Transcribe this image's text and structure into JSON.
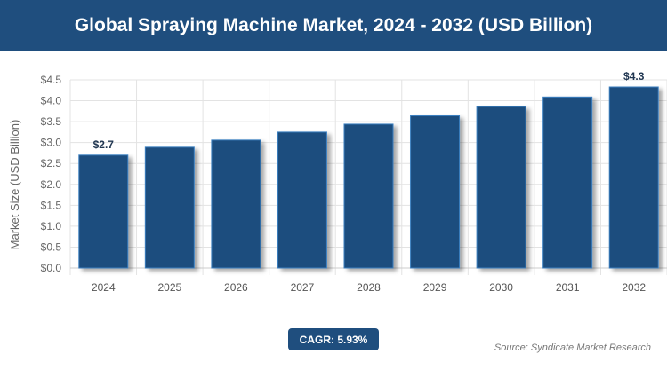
{
  "title": "Global Spraying Machine Market, 2024 - 2032 (USD Billion)",
  "cagr": "CAGR: 5.93%",
  "source": "Source: Syndicate Market Research",
  "colors": {
    "bar": "#1f4e7e",
    "header": "#1f4e7e"
  },
  "chart_data": {
    "type": "bar",
    "categories": [
      "2024",
      "2025",
      "2026",
      "2027",
      "2028",
      "2029",
      "2030",
      "2031",
      "2032"
    ],
    "values": [
      2.7,
      2.89,
      3.06,
      3.25,
      3.44,
      3.64,
      3.86,
      4.09,
      4.33
    ],
    "data_labels": {
      "0": "$2.7",
      "8": "$4.3"
    },
    "xlabel": "",
    "ylabel": "Market Size (USD Billion)",
    "ylim": [
      0,
      4.5
    ],
    "yticks": [
      "$0.0",
      "$0.5",
      "$1.0",
      "$1.5",
      "$2.0",
      "$2.5",
      "$3.0",
      "$3.5",
      "$4.0",
      "$4.5"
    ],
    "grid": true
  }
}
